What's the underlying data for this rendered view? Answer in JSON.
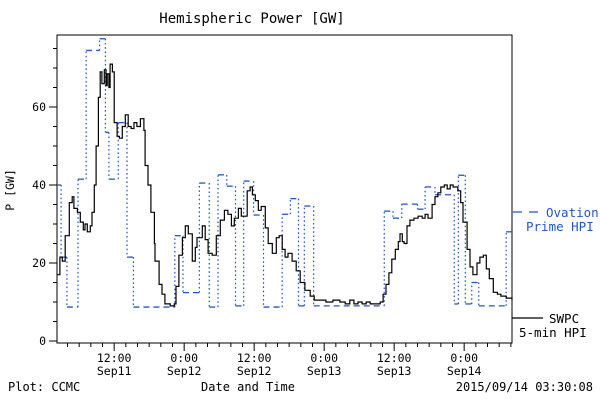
{
  "title": "Hemispheric Power [GW]",
  "footer": {
    "left": "Plot: CCMC",
    "center": "Date and Time",
    "right": "2015/09/14 03:30:08"
  },
  "y_axis": {
    "label": "P [GW]",
    "ticks": [
      0,
      20,
      40,
      60
    ]
  },
  "x_axis": {
    "labels": [
      {
        "time": "12:00",
        "date": "Sep11",
        "t": 12
      },
      {
        "time": "0:00",
        "date": "Sep12",
        "t": 24
      },
      {
        "time": "12:00",
        "date": "Sep12",
        "t": 36
      },
      {
        "time": "0:00",
        "date": "Sep13",
        "t": 48
      },
      {
        "time": "12:00",
        "date": "Sep13",
        "t": 60
      },
      {
        "time": "0:00",
        "date": "Sep14",
        "t": 72
      }
    ]
  },
  "legend": {
    "ovation": {
      "line1": "Ovation",
      "line2": "Prime HPI",
      "color": "#2255cc"
    },
    "swpc": {
      "line1": "SWPC",
      "line2": "5-min HPI",
      "color": "#000000"
    }
  },
  "colors": {
    "ovation_blue": "#2255cc",
    "swpc_black": "#000000"
  },
  "chart_data": {
    "type": "line",
    "title": "Hemispheric Power [GW]",
    "xlabel": "Date and Time",
    "ylabel": "P [GW]",
    "x_unit": "hours since 2015-09-11 00:00 UT",
    "xlim": [
      2.2,
      80.2
    ],
    "ylim": [
      0,
      78.5
    ],
    "grid": false,
    "legend_position": "right-outside",
    "x_major_tick_hours": [
      12,
      24,
      36,
      48,
      60,
      72
    ],
    "x_minor_tick_step_hours": 2,
    "y_major_ticks": [
      0,
      20,
      40,
      60
    ],
    "y_minor_tick_step": 5,
    "series": [
      {
        "name": "SWPC 5-min HPI",
        "color": "#000000",
        "line_style": "solid",
        "interpolation": "step-after",
        "points": [
          [
            2.2,
            17
          ],
          [
            2.7,
            21.5
          ],
          [
            3.1,
            20.5
          ],
          [
            3.6,
            27
          ],
          [
            4.3,
            35.5
          ],
          [
            4.8,
            37
          ],
          [
            5.1,
            34
          ],
          [
            5.7,
            33
          ],
          [
            6.2,
            30.5
          ],
          [
            6.7,
            28.5
          ],
          [
            7.0,
            30
          ],
          [
            7.4,
            28
          ],
          [
            7.9,
            29.5
          ],
          [
            8.2,
            33
          ],
          [
            8.6,
            40
          ],
          [
            8.9,
            50
          ],
          [
            9.3,
            62.5
          ],
          [
            9.6,
            69
          ],
          [
            9.9,
            66
          ],
          [
            10.3,
            69.5
          ],
          [
            10.6,
            65.5
          ],
          [
            10.8,
            68.5
          ],
          [
            11.1,
            65
          ],
          [
            11.3,
            71
          ],
          [
            11.7,
            69
          ],
          [
            12.0,
            56
          ],
          [
            12.5,
            52.5
          ],
          [
            12.9,
            52
          ],
          [
            13.4,
            55
          ],
          [
            13.9,
            58
          ],
          [
            14.4,
            55
          ],
          [
            14.9,
            54.5
          ],
          [
            15.4,
            56
          ],
          [
            15.9,
            55
          ],
          [
            16.5,
            57
          ],
          [
            17.1,
            54
          ],
          [
            17.3,
            45
          ],
          [
            17.8,
            40
          ],
          [
            18.3,
            33
          ],
          [
            18.9,
            25
          ],
          [
            19.0,
            20.5
          ],
          [
            19.7,
            14.5
          ],
          [
            20.2,
            12
          ],
          [
            20.7,
            9.5
          ],
          [
            21.6,
            9
          ],
          [
            22.3,
            9.5
          ],
          [
            22.6,
            14
          ],
          [
            23.1,
            22
          ],
          [
            23.7,
            26.5
          ],
          [
            24.2,
            29.5
          ],
          [
            24.7,
            27.5
          ],
          [
            25.4,
            20.5
          ],
          [
            25.9,
            24
          ],
          [
            26.2,
            26.5
          ],
          [
            27.1,
            29.5
          ],
          [
            27.6,
            26
          ],
          [
            28.1,
            22.5
          ],
          [
            28.8,
            22
          ],
          [
            29.5,
            27
          ],
          [
            30.2,
            31
          ],
          [
            30.9,
            33.5
          ],
          [
            31.5,
            32.5
          ],
          [
            32.1,
            29.5
          ],
          [
            32.6,
            31.5
          ],
          [
            33.3,
            34
          ],
          [
            33.8,
            32
          ],
          [
            34.8,
            38.5
          ],
          [
            35.3,
            39.5
          ],
          [
            35.7,
            37.5
          ],
          [
            36.2,
            36
          ],
          [
            36.7,
            33.5
          ],
          [
            37.2,
            34.5
          ],
          [
            37.9,
            29
          ],
          [
            38.4,
            25
          ],
          [
            39.1,
            22.5
          ],
          [
            39.8,
            26.5
          ],
          [
            40.3,
            27
          ],
          [
            40.8,
            23.5
          ],
          [
            41.3,
            21.5
          ],
          [
            41.8,
            22.5
          ],
          [
            42.5,
            20.5
          ],
          [
            43.2,
            18
          ],
          [
            43.9,
            15
          ],
          [
            44.7,
            13
          ],
          [
            45.6,
            11.5
          ],
          [
            46.3,
            10.5
          ],
          [
            47.3,
            10.5
          ],
          [
            48.3,
            10
          ],
          [
            49.5,
            10.5
          ],
          [
            50.7,
            10
          ],
          [
            51.6,
            9.5
          ],
          [
            52.4,
            10.5
          ],
          [
            53.1,
            9.5
          ],
          [
            53.8,
            10
          ],
          [
            54.5,
            9.5
          ],
          [
            55.2,
            10
          ],
          [
            55.9,
            9.5
          ],
          [
            56.7,
            9.5
          ],
          [
            57.6,
            10
          ],
          [
            58.1,
            12
          ],
          [
            58.6,
            14.5
          ],
          [
            59.1,
            17.5
          ],
          [
            59.6,
            21
          ],
          [
            60.2,
            23.5
          ],
          [
            60.7,
            25.5
          ],
          [
            61.0,
            27.5
          ],
          [
            61.4,
            25.5
          ],
          [
            61.7,
            25
          ],
          [
            62.2,
            29.5
          ],
          [
            62.7,
            31
          ],
          [
            63.4,
            31.5
          ],
          [
            64.1,
            32
          ],
          [
            64.8,
            31.5
          ],
          [
            65.3,
            32.5
          ],
          [
            65.8,
            31.5
          ],
          [
            66.5,
            35
          ],
          [
            67.0,
            37
          ],
          [
            67.5,
            38
          ],
          [
            68.0,
            39.5
          ],
          [
            68.6,
            40
          ],
          [
            69.1,
            39
          ],
          [
            69.6,
            40
          ],
          [
            70.1,
            39.5
          ],
          [
            70.6,
            39.5
          ],
          [
            70.9,
            38.5
          ],
          [
            71.4,
            35.5
          ],
          [
            71.8,
            30.5
          ],
          [
            72.5,
            23.5
          ],
          [
            73.0,
            19
          ],
          [
            73.5,
            17
          ],
          [
            74.2,
            20
          ],
          [
            74.7,
            21.5
          ],
          [
            75.3,
            22
          ],
          [
            75.8,
            18.5
          ],
          [
            76.3,
            16
          ],
          [
            77.0,
            12.5
          ],
          [
            77.7,
            12
          ],
          [
            78.3,
            11.5
          ],
          [
            79.2,
            11
          ],
          [
            80.2,
            10.5
          ]
        ]
      },
      {
        "name": "Ovation Prime HPI",
        "color": "#2255cc",
        "line_style": "dashed",
        "interpolation": "step-segments",
        "segments": [
          [
            2.2,
            2.9,
            40
          ],
          [
            2.9,
            3.9,
            21.5
          ],
          [
            3.9,
            5.8,
            8.7
          ],
          [
            5.8,
            7.2,
            41.5
          ],
          [
            7.2,
            9.5,
            74.5
          ],
          [
            9.5,
            10.5,
            77.5
          ],
          [
            10.5,
            11.1,
            53.5
          ],
          [
            11.1,
            12.7,
            41.5
          ],
          [
            12.7,
            14.2,
            56
          ],
          [
            14.2,
            15.3,
            21.5
          ],
          [
            15.3,
            22.4,
            8.7
          ],
          [
            22.4,
            23.8,
            27
          ],
          [
            23.8,
            26.6,
            12.4
          ],
          [
            26.6,
            28.3,
            40.5
          ],
          [
            28.3,
            29.8,
            8.7
          ],
          [
            29.8,
            31.3,
            42.6
          ],
          [
            31.3,
            32.8,
            39.7
          ],
          [
            32.8,
            34.2,
            9
          ],
          [
            34.2,
            35.9,
            41
          ],
          [
            35.9,
            37.6,
            32.3
          ],
          [
            37.6,
            40.8,
            8.7
          ],
          [
            40.8,
            42.2,
            32.5
          ],
          [
            42.2,
            43.6,
            36.5
          ],
          [
            43.6,
            44.6,
            9
          ],
          [
            44.6,
            46.2,
            34.6
          ],
          [
            46.2,
            58.3,
            9
          ],
          [
            58.3,
            59.8,
            33.3
          ],
          [
            59.8,
            61.3,
            31.5
          ],
          [
            61.3,
            64.0,
            35.1
          ],
          [
            64.0,
            65.3,
            33.8
          ],
          [
            65.3,
            67.0,
            39.5
          ],
          [
            67.0,
            70.3,
            37.5
          ],
          [
            70.3,
            71.0,
            9.5
          ],
          [
            71.0,
            72.2,
            42.5
          ],
          [
            72.2,
            73.3,
            9.5
          ],
          [
            73.3,
            74.5,
            15
          ],
          [
            74.5,
            79.2,
            9
          ],
          [
            79.2,
            80.2,
            28
          ]
        ]
      }
    ]
  }
}
